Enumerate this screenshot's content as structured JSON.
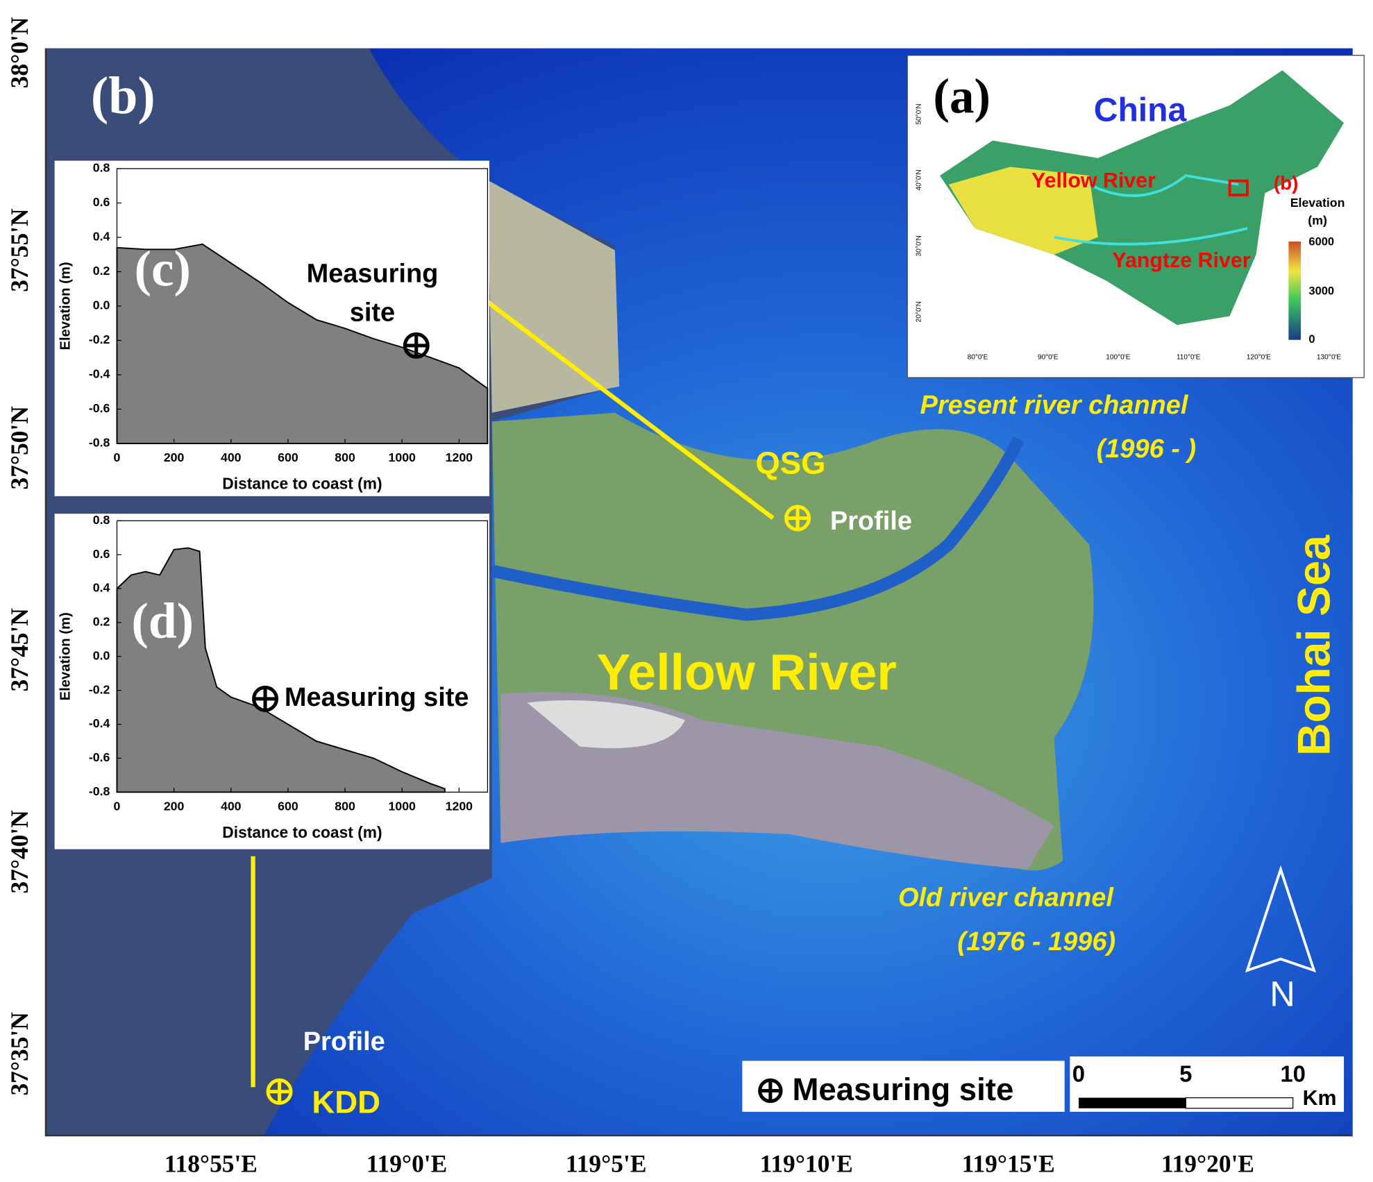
{
  "map": {
    "panel_label": "(b)",
    "river_label": "Yellow River",
    "sea_label": "Bohai Sea",
    "sites": [
      {
        "name": "QSG",
        "profile": "Profile"
      },
      {
        "name": "KDD",
        "profile": "Profile"
      }
    ],
    "present_channel": [
      "Present river channel",
      "(1996  -  )"
    ],
    "old_channel": [
      "Old river channel",
      "(1976 - 1996)"
    ],
    "north": "N",
    "legend": "Measuring site",
    "scale": {
      "labels": [
        "0",
        "5",
        "10"
      ],
      "unit": "Km"
    },
    "lat_labels": [
      "38°0'N",
      "37°55'N",
      "37°50'N",
      "37°45'N",
      "37°40'N",
      "37°35'N"
    ],
    "lon_labels": [
      "118°55'E",
      "119°0'E",
      "119°5'E",
      "119°10'E",
      "119°15'E",
      "119°20'E"
    ]
  },
  "inset": {
    "panel_label": "(a)",
    "country": "China",
    "rivers": [
      "Yellow River",
      "Yangtze River"
    ],
    "box_label": "(b)",
    "colorbar_title": [
      "Elevation",
      "(m)"
    ],
    "colorbar_labels": [
      "6000",
      "3000",
      "0"
    ],
    "lon_labels": [
      "80°0'E",
      "90°0'E",
      "100°0'E",
      "110°0'E",
      "120°0'E",
      "130°0'E"
    ],
    "lat_labels": [
      "50°0'N",
      "40°0'N",
      "30°0'N",
      "20°0'N"
    ]
  },
  "chart_data": [
    {
      "type": "area",
      "panel_label": "(c)",
      "xlabel": "Distance to coast (m)",
      "ylabel": "Elevation (m)",
      "x": [
        0,
        100,
        200,
        300,
        400,
        500,
        600,
        700,
        800,
        900,
        1000,
        1100,
        1200,
        1300
      ],
      "series": [
        {
          "color": "#808080",
          "values": [
            0.34,
            0.33,
            0.33,
            0.36,
            0.25,
            0.14,
            0.02,
            -0.08,
            -0.13,
            -0.19,
            -0.24,
            -0.3,
            -0.36,
            -0.48
          ]
        }
      ],
      "site": {
        "x": 1050,
        "y": -0.23
      },
      "annotation": [
        "Measuring",
        "site"
      ],
      "xlim": [
        0,
        1300
      ],
      "ylim": [
        -0.8,
        0.8
      ],
      "xticks": [
        0,
        200,
        400,
        600,
        800,
        1000,
        1200
      ],
      "yticks": [
        -0.8,
        -0.6,
        -0.4,
        -0.2,
        {
          "value": 0,
          "label": "0.0"
        },
        0.2,
        0.4,
        0.6,
        0.8
      ]
    },
    {
      "type": "area",
      "panel_label": "(d)",
      "xlabel": "Distance to coast (m)",
      "ylabel": "Elevation (m)",
      "x": [
        0,
        50,
        100,
        150,
        200,
        250,
        290,
        310,
        350,
        400,
        500,
        600,
        700,
        800,
        900,
        1000,
        1100,
        1150
      ],
      "series": [
        {
          "color": "#808080",
          "values": [
            0.4,
            0.48,
            0.5,
            0.48,
            0.63,
            0.64,
            0.62,
            0.05,
            -0.18,
            -0.24,
            -0.3,
            -0.4,
            -0.5,
            -0.55,
            -0.6,
            -0.68,
            -0.75,
            -0.78
          ]
        }
      ],
      "site": {
        "x": 520,
        "y": -0.25
      },
      "annotation": [
        "Measuring site"
      ],
      "xlim": [
        0,
        1300
      ],
      "ylim": [
        -0.8,
        0.8
      ],
      "xticks": [
        0,
        200,
        400,
        600,
        800,
        1000,
        1200
      ],
      "yticks": [
        -0.8,
        -0.6,
        -0.4,
        -0.2,
        {
          "value": 0,
          "label": "0.0"
        },
        0.2,
        0.4,
        0.6,
        0.8
      ]
    }
  ]
}
